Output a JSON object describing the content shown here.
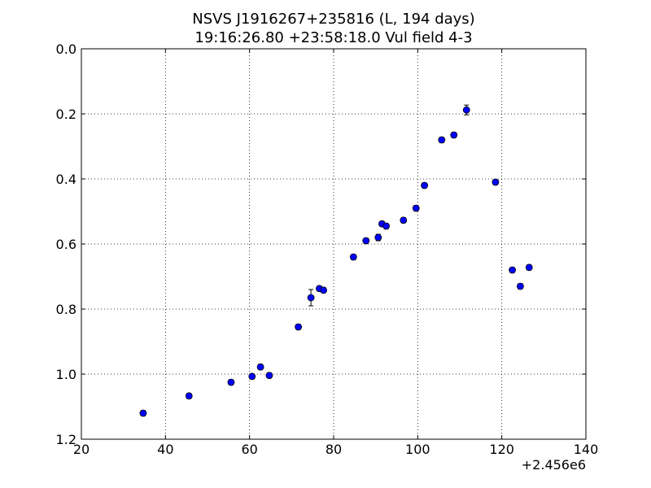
{
  "chart_data": {
    "type": "scatter",
    "title_line1": "NSVS J1916267+235816 (L, 194 days)",
    "title_line2": "19:16:26.80 +23:58:18.0 Vul field 4-3",
    "xlabel": "",
    "ylabel": "",
    "x_offset_label": "+2.456e6",
    "xlim": [
      20,
      140
    ],
    "ylim": [
      0.0,
      1.2
    ],
    "y_inverted": true,
    "grid": true,
    "x_ticks": [
      20,
      40,
      60,
      80,
      100,
      120,
      140
    ],
    "x_tick_labels": [
      "20",
      "40",
      "60",
      "80",
      "100",
      "120",
      "140"
    ],
    "y_ticks": [
      0.0,
      0.2,
      0.4,
      0.6,
      0.8,
      1.0,
      1.2
    ],
    "y_tick_labels": [
      "0.0",
      "0.2",
      "0.4",
      "0.6",
      "0.8",
      "1.0",
      "1.2"
    ],
    "marker_color": "#0000ff",
    "points": [
      {
        "x": 34.7,
        "y": 1.12,
        "err": 0.008
      },
      {
        "x": 45.6,
        "y": 1.067,
        "err": 0.008
      },
      {
        "x": 55.6,
        "y": 1.025,
        "err": 0.008
      },
      {
        "x": 60.6,
        "y": 1.007,
        "err": 0.008
      },
      {
        "x": 62.6,
        "y": 0.978,
        "err": 0.008
      },
      {
        "x": 64.7,
        "y": 1.004,
        "err": 0.008
      },
      {
        "x": 71.6,
        "y": 0.855,
        "err": 0.008
      },
      {
        "x": 74.6,
        "y": 0.765,
        "err": 0.025
      },
      {
        "x": 76.6,
        "y": 0.737,
        "err": 0.008
      },
      {
        "x": 77.6,
        "y": 0.742,
        "err": 0.008
      },
      {
        "x": 84.7,
        "y": 0.64,
        "err": 0.008
      },
      {
        "x": 87.7,
        "y": 0.59,
        "err": 0.008
      },
      {
        "x": 90.6,
        "y": 0.58,
        "err": 0.01
      },
      {
        "x": 91.5,
        "y": 0.538,
        "err": 0.008
      },
      {
        "x": 92.5,
        "y": 0.545,
        "err": 0.008
      },
      {
        "x": 96.6,
        "y": 0.527,
        "err": 0.008
      },
      {
        "x": 99.6,
        "y": 0.49,
        "err": 0.008
      },
      {
        "x": 101.6,
        "y": 0.42,
        "err": 0.008
      },
      {
        "x": 105.7,
        "y": 0.28,
        "err": 0.008
      },
      {
        "x": 108.6,
        "y": 0.265,
        "err": 0.008
      },
      {
        "x": 111.6,
        "y": 0.188,
        "err": 0.015
      },
      {
        "x": 118.5,
        "y": 0.41,
        "err": 0.008
      },
      {
        "x": 122.5,
        "y": 0.68,
        "err": 0.008
      },
      {
        "x": 124.4,
        "y": 0.73,
        "err": 0.008
      },
      {
        "x": 126.5,
        "y": 0.672,
        "err": 0.008
      }
    ]
  }
}
